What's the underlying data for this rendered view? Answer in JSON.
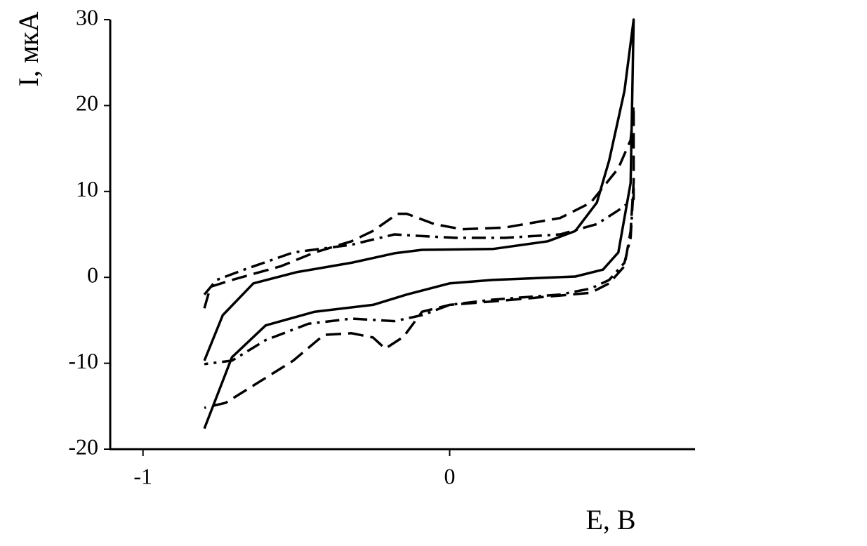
{
  "chart_data": {
    "type": "line",
    "x_label": "E, В",
    "y_label": "I, мкА",
    "xlim": [
      -1.1,
      0.8
    ],
    "xticks": [
      -1,
      0
    ],
    "ylim": [
      -20,
      30
    ],
    "yticks": [
      -20,
      -10,
      0,
      10,
      20,
      30
    ],
    "series": [
      {
        "color": "#000000",
        "dash": "solid",
        "x": [
          -0.8,
          -0.74,
          -0.64,
          -0.5,
          -0.32,
          -0.18,
          -0.09,
          0.14,
          0.32,
          0.41,
          0.48,
          0.52,
          0.57,
          0.6,
          0.59,
          0.55,
          0.5,
          0.41,
          0.14,
          0,
          -0.14,
          -0.25,
          -0.44,
          -0.6,
          -0.71,
          -0.8
        ],
        "values": [
          -9.7,
          -4.4,
          -0.7,
          0.6,
          1.7,
          2.8,
          3.2,
          3.3,
          4.2,
          5.4,
          8.7,
          13.6,
          21.7,
          30,
          11,
          2.9,
          0.9,
          0.1,
          -0.3,
          -0.7,
          -2,
          -3.2,
          -4,
          -5.6,
          -9.3,
          -17.6
        ]
      },
      {
        "color": "#000000",
        "dash": "dashed",
        "x": [
          -0.8,
          -0.78,
          -0.71,
          -0.55,
          -0.44,
          -0.32,
          -0.25,
          -0.17,
          -0.14,
          -0.05,
          0.04,
          0.18,
          0.36,
          0.46,
          0.55,
          0.59,
          0.6,
          0.6,
          0.59,
          0.57,
          0.52,
          0.46,
          0.27,
          0.14,
          0,
          -0.09,
          -0.15,
          -0.21,
          -0.25,
          -0.32,
          -0.41,
          -0.51,
          -0.64,
          -0.73,
          -0.8
        ],
        "values": [
          -3.6,
          -1.1,
          -0.3,
          1.3,
          2.9,
          4.2,
          5.4,
          7.4,
          7.4,
          6.2,
          5.6,
          5.8,
          6.9,
          8.7,
          12.7,
          16,
          20,
          11.1,
          5.4,
          1.3,
          -0.7,
          -1.8,
          -2.4,
          -2.8,
          -3.2,
          -4,
          -6.9,
          -8.3,
          -7,
          -6.5,
          -6.7,
          -9.7,
          -12.6,
          -14.6,
          -15.2
        ]
      },
      {
        "color": "#000000",
        "dash": "dashdot",
        "x": [
          -0.8,
          -0.76,
          -0.67,
          -0.51,
          -0.32,
          -0.18,
          -0.09,
          0.02,
          0.18,
          0.36,
          0.48,
          0.55,
          0.6,
          0.6,
          0.59,
          0.57,
          0.52,
          0.46,
          0.36,
          0.14,
          0,
          -0.09,
          -0.18,
          -0.32,
          -0.46,
          -0.6,
          -0.71,
          -0.8
        ],
        "values": [
          -2,
          -0.3,
          0.9,
          2.9,
          3.8,
          5,
          4.8,
          4.6,
          4.6,
          5,
          6.2,
          7.8,
          9.1,
          10.7,
          4.6,
          1.7,
          -0.3,
          -1.3,
          -2,
          -2.6,
          -3.2,
          -4.4,
          -5.1,
          -4.8,
          -5.4,
          -7.3,
          -9.7,
          -10.1
        ]
      }
    ]
  }
}
